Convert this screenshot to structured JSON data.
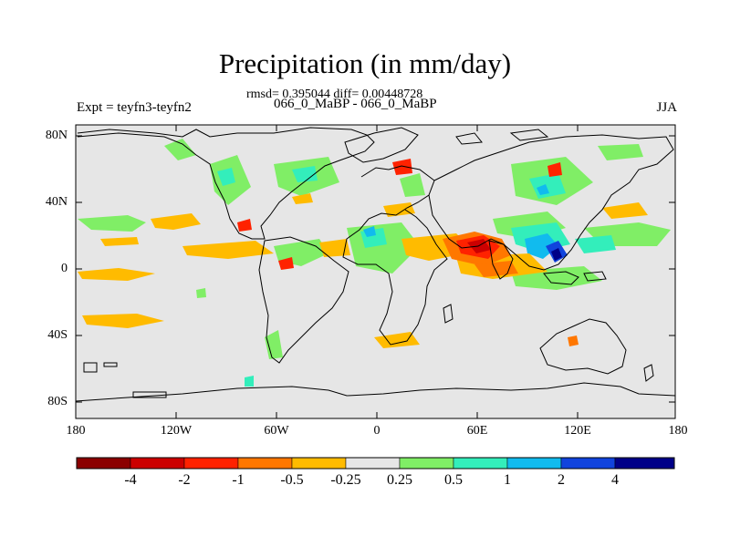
{
  "title": "Precipitation (in mm/day)",
  "stats": "rmsd= 0.395044 diff= 0.00448728",
  "subtitle": "066_0_MaBP - 066_0_MaBP",
  "expt": "Expt = teyfn3-teyfn2",
  "season": "JJA",
  "y_ticks": [
    "80N",
    "40N",
    "0",
    "40S",
    "80S"
  ],
  "x_ticks": [
    "180",
    "120W",
    "60W",
    "0",
    "60E",
    "120E",
    "180"
  ],
  "colorbar": {
    "colors": [
      "#8b0000",
      "#cc0000",
      "#ff2200",
      "#ff7700",
      "#ffbb00",
      "#e6e6e6",
      "#80ee66",
      "#33eebb",
      "#11bbee",
      "#1144dd",
      "#000088"
    ],
    "labels": [
      "-4",
      "-2",
      "-1",
      "-0.5",
      "-0.25",
      "0.25",
      "0.5",
      "1",
      "2",
      "4"
    ]
  }
}
